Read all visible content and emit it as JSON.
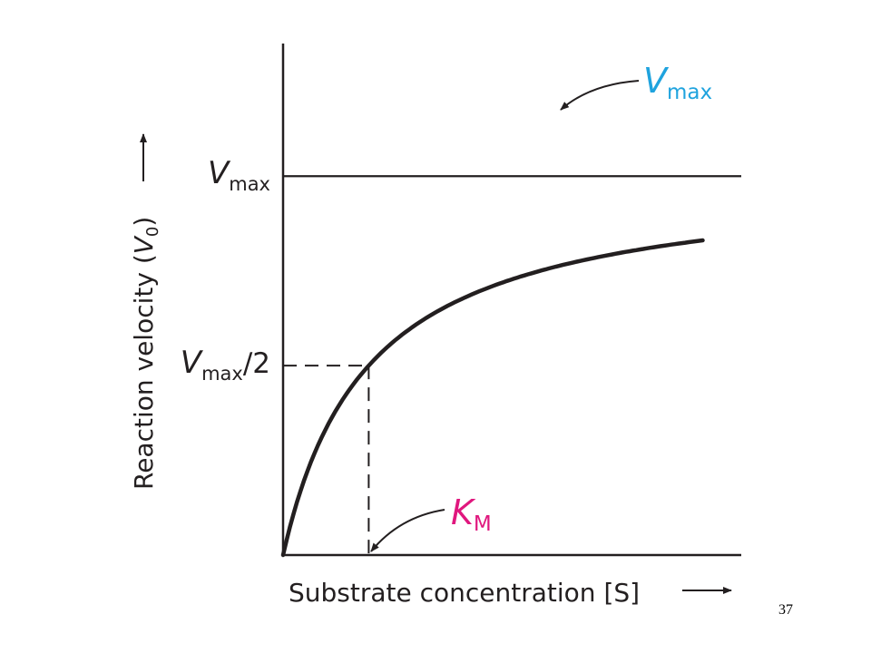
{
  "page_number": "37",
  "colors": {
    "ink": "#231f20",
    "vmax_annotation": "#1fa3de",
    "km_annotation": "#e0177e"
  },
  "chart_data": {
    "type": "line",
    "title": "",
    "xlabel": "Substrate concentration [S]",
    "xlabel_arrow": "⟶",
    "ylabel": {
      "prefix": "Reaction velocity (",
      "symbol": "V",
      "subscript": "0",
      "suffix": ")",
      "arrow": "⟶"
    },
    "xlim": [
      0,
      5.35
    ],
    "ylim": [
      0,
      1.35
    ],
    "y_ticks": [
      {
        "value": 1.0,
        "symbol": "V",
        "subscript": "max",
        "suffix": ""
      },
      {
        "value": 0.5,
        "symbol": "V",
        "subscript": "max",
        "suffix": "/2"
      }
    ],
    "vmax": 1.0,
    "km": 1.0,
    "series": [
      {
        "equation": "v = Vmax*[S]/(Km + [S])",
        "x": [
          0,
          0.05,
          0.1,
          0.2,
          0.3,
          0.4,
          0.5,
          0.6,
          0.8,
          1.0,
          1.2,
          1.5,
          1.8,
          2.1,
          2.5,
          3.0,
          3.5,
          4.0,
          4.5,
          4.9
        ],
        "y": [
          0,
          0.048,
          0.091,
          0.167,
          0.231,
          0.286,
          0.333,
          0.375,
          0.444,
          0.5,
          0.545,
          0.6,
          0.643,
          0.677,
          0.714,
          0.75,
          0.778,
          0.8,
          0.818,
          0.831
        ]
      }
    ],
    "annotations": [
      {
        "symbol": "V",
        "subscript": "max",
        "points_to": "vmax_line",
        "color": "#1fa3de"
      },
      {
        "symbol": "K",
        "subscript": "M",
        "points_to": "km_on_x_axis",
        "color": "#e0177e"
      }
    ],
    "grid": false,
    "legend": "none"
  }
}
